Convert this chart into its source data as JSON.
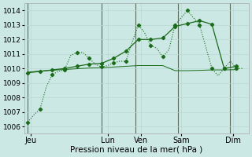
{
  "background_color": "#cce8e4",
  "grid_color_major": "#b8d8d4",
  "grid_color_minor": "#cce0dc",
  "line_color": "#1a6b1a",
  "xlabel": "Pression niveau de la mer( hPa )",
  "ylim": [
    1005.5,
    1014.5
  ],
  "yticks": [
    1006,
    1007,
    1008,
    1009,
    1010,
    1011,
    1012,
    1013,
    1014
  ],
  "xlim": [
    -0.5,
    36
  ],
  "x_day_labels": [
    "Jeu",
    "Lun",
    "Ven",
    "Sam",
    "Dim"
  ],
  "x_day_positions": [
    0.5,
    13,
    18.5,
    25,
    33.5
  ],
  "x_vlines": [
    0,
    12,
    17.5,
    24.5,
    33
  ],
  "series1_x": [
    0,
    1,
    2,
    3,
    4,
    5,
    6,
    7,
    8,
    9,
    10,
    11,
    12,
    13,
    14,
    15,
    16,
    17,
    18,
    19,
    20,
    21,
    22,
    23,
    24,
    25,
    26,
    27,
    28,
    29,
    30,
    31,
    32,
    33,
    34,
    35
  ],
  "series1_y": [
    1006.3,
    1006.8,
    1007.2,
    1008.7,
    1009.6,
    1009.8,
    1009.9,
    1010.9,
    1011.1,
    1011.1,
    1010.7,
    1010.3,
    1010.1,
    1010.2,
    1010.4,
    1010.5,
    1010.5,
    1011.8,
    1013.0,
    1012.5,
    1011.6,
    1011.4,
    1010.8,
    1011.3,
    1013.0,
    1013.5,
    1014.0,
    1013.5,
    1013.0,
    1011.5,
    1010.0,
    1009.5,
    1010.0,
    1010.5,
    1010.0,
    1010.0
  ],
  "series1_markers_x": [
    0,
    2,
    4,
    6,
    8,
    10,
    12,
    14,
    16,
    18,
    20,
    22,
    24,
    26,
    28,
    30,
    32,
    34
  ],
  "series1_markers_y": [
    1006.3,
    1007.2,
    1009.6,
    1009.9,
    1011.1,
    1010.7,
    1010.1,
    1010.4,
    1010.5,
    1013.0,
    1011.6,
    1010.8,
    1013.0,
    1014.0,
    1013.0,
    1010.0,
    1010.0,
    1010.0
  ],
  "series2_x": [
    0,
    2,
    4,
    6,
    8,
    10,
    12,
    14,
    16,
    18,
    20,
    22,
    24,
    26,
    28,
    30,
    32,
    34
  ],
  "series2_y": [
    1009.7,
    1009.8,
    1009.9,
    1010.0,
    1010.15,
    1010.3,
    1010.35,
    1010.7,
    1011.2,
    1012.0,
    1012.0,
    1012.1,
    1012.9,
    1013.1,
    1013.3,
    1013.05,
    1010.0,
    1010.15
  ],
  "series3_x": [
    0,
    2,
    4,
    6,
    8,
    10,
    12,
    14,
    16,
    18,
    20,
    22,
    24,
    26,
    28,
    30,
    32,
    34
  ],
  "series3_y": [
    1009.75,
    1009.82,
    1009.88,
    1009.93,
    1009.98,
    1010.03,
    1010.05,
    1010.1,
    1010.15,
    1010.2,
    1010.2,
    1010.2,
    1009.85,
    1009.85,
    1009.87,
    1009.9,
    1009.9,
    1009.92
  ]
}
